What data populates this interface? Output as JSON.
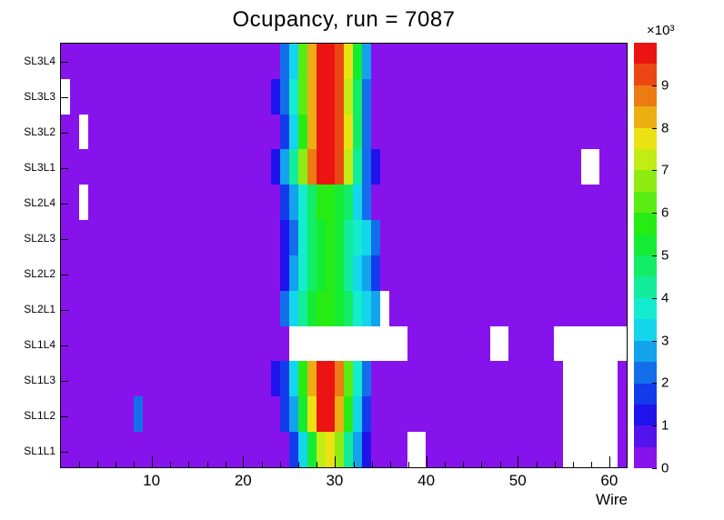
{
  "chart_data": {
    "type": "heatmap",
    "title": "Ocupancy, run = 7087",
    "xlabel": "Wire",
    "x_range": [
      0,
      62
    ],
    "x_major_ticks": [
      10,
      20,
      30,
      40,
      50,
      60
    ],
    "x_minor_tick_step": 2,
    "z_range": [
      0,
      10000
    ],
    "colorbar_ticks": [
      0,
      1,
      2,
      3,
      4,
      5,
      6,
      7,
      8,
      9
    ],
    "z_scale_label": "×10³",
    "empty_bins_color": "#ffffff",
    "palette": {
      "name": "root-rainbow",
      "levels": 20,
      "hue_start": 272,
      "hue_end": 0,
      "saturation": 85,
      "lightness": 50
    },
    "rows_top_to_bottom": [
      {
        "label": "SL3L4",
        "values": [
          400,
          400,
          400,
          400,
          400,
          400,
          400,
          400,
          400,
          400,
          400,
          400,
          400,
          400,
          400,
          400,
          400,
          400,
          400,
          400,
          400,
          400,
          400,
          400,
          2000,
          3400,
          6000,
          8200,
          9600,
          9900,
          9400,
          7800,
          5000,
          2600,
          400,
          400,
          400,
          400,
          400,
          400,
          400,
          400,
          400,
          400,
          400,
          400,
          400,
          400,
          400,
          400,
          400,
          400,
          400,
          400,
          400,
          400,
          400,
          400,
          400,
          400,
          400,
          400
        ]
      },
      {
        "label": "SL3L3",
        "values": [
          null,
          400,
          400,
          400,
          400,
          400,
          400,
          400,
          400,
          400,
          400,
          400,
          400,
          400,
          400,
          400,
          400,
          400,
          400,
          400,
          400,
          400,
          400,
          1400,
          2200,
          3800,
          6400,
          8400,
          9700,
          9900,
          9300,
          7400,
          4600,
          2400,
          400,
          400,
          400,
          400,
          400,
          400,
          400,
          400,
          400,
          400,
          400,
          400,
          400,
          400,
          400,
          400,
          400,
          400,
          400,
          400,
          400,
          400,
          400,
          400,
          400,
          400,
          400,
          400
        ]
      },
      {
        "label": "SL3L2",
        "values": [
          400,
          400,
          null,
          400,
          400,
          400,
          400,
          400,
          400,
          400,
          400,
          400,
          400,
          400,
          400,
          400,
          400,
          400,
          400,
          400,
          400,
          400,
          400,
          400,
          1800,
          3200,
          5800,
          8000,
          9500,
          9800,
          9200,
          7600,
          4800,
          2400,
          400,
          400,
          400,
          400,
          400,
          400,
          400,
          400,
          400,
          400,
          400,
          400,
          400,
          400,
          400,
          400,
          400,
          400,
          400,
          400,
          400,
          400,
          400,
          400,
          400,
          400,
          400,
          400
        ]
      },
      {
        "label": "SL3L1",
        "values": [
          400,
          400,
          400,
          400,
          400,
          400,
          400,
          400,
          400,
          400,
          400,
          400,
          400,
          400,
          400,
          400,
          400,
          400,
          400,
          400,
          400,
          400,
          400,
          1400,
          2600,
          4200,
          6800,
          8600,
          9800,
          9900,
          9000,
          7000,
          4400,
          2200,
          1200,
          400,
          400,
          400,
          400,
          400,
          400,
          400,
          400,
          400,
          400,
          400,
          400,
          400,
          400,
          400,
          400,
          400,
          400,
          400,
          400,
          400,
          400,
          null,
          null,
          400,
          400,
          400
        ]
      },
      {
        "label": "SL2L4",
        "values": [
          400,
          400,
          null,
          400,
          400,
          400,
          400,
          400,
          400,
          400,
          400,
          400,
          400,
          400,
          400,
          400,
          400,
          400,
          400,
          400,
          400,
          400,
          400,
          400,
          1600,
          2600,
          3800,
          4800,
          5600,
          5800,
          5400,
          4600,
          3400,
          2200,
          400,
          400,
          400,
          400,
          400,
          400,
          400,
          400,
          400,
          400,
          400,
          400,
          400,
          400,
          400,
          400,
          400,
          400,
          400,
          400,
          400,
          400,
          400,
          400,
          400,
          400,
          400,
          400
        ]
      },
      {
        "label": "SL2L3",
        "values": [
          400,
          400,
          400,
          400,
          400,
          400,
          400,
          400,
          400,
          400,
          400,
          400,
          400,
          400,
          400,
          400,
          400,
          400,
          400,
          400,
          400,
          400,
          400,
          400,
          1400,
          2400,
          3600,
          4600,
          5200,
          5600,
          5200,
          4400,
          3600,
          3000,
          2000,
          400,
          400,
          400,
          400,
          400,
          400,
          400,
          400,
          400,
          400,
          400,
          400,
          400,
          400,
          400,
          400,
          400,
          400,
          400,
          400,
          400,
          400,
          400,
          400,
          400,
          400,
          400
        ]
      },
      {
        "label": "SL2L2",
        "values": [
          400,
          400,
          400,
          400,
          400,
          400,
          400,
          400,
          400,
          400,
          400,
          400,
          400,
          400,
          400,
          400,
          400,
          400,
          400,
          400,
          400,
          400,
          400,
          400,
          1400,
          2600,
          3800,
          4800,
          5400,
          5600,
          5000,
          4200,
          3400,
          2800,
          1800,
          400,
          400,
          400,
          400,
          400,
          400,
          400,
          400,
          400,
          400,
          400,
          400,
          400,
          400,
          400,
          400,
          400,
          400,
          400,
          400,
          400,
          400,
          400,
          400,
          400,
          400,
          400
        ]
      },
      {
        "label": "SL2L1",
        "values": [
          400,
          400,
          400,
          400,
          400,
          400,
          400,
          400,
          400,
          400,
          400,
          400,
          400,
          400,
          400,
          400,
          400,
          400,
          400,
          400,
          400,
          400,
          400,
          400,
          2000,
          3000,
          4000,
          5000,
          5600,
          5800,
          5400,
          4600,
          3800,
          3200,
          2600,
          null,
          400,
          400,
          400,
          400,
          400,
          400,
          400,
          400,
          400,
          400,
          400,
          400,
          400,
          400,
          400,
          400,
          400,
          400,
          400,
          400,
          400,
          400,
          400,
          400,
          400,
          400
        ]
      },
      {
        "label": "SL1L4",
        "values": [
          400,
          400,
          400,
          400,
          400,
          400,
          400,
          400,
          400,
          400,
          400,
          400,
          400,
          400,
          400,
          400,
          400,
          400,
          400,
          400,
          400,
          400,
          400,
          400,
          400,
          null,
          null,
          null,
          null,
          null,
          null,
          null,
          null,
          null,
          null,
          null,
          null,
          null,
          400,
          400,
          400,
          400,
          400,
          400,
          400,
          400,
          400,
          null,
          null,
          400,
          400,
          400,
          400,
          400,
          null,
          null,
          null,
          null,
          null,
          null,
          null,
          null
        ]
      },
      {
        "label": "SL1L3",
        "values": [
          400,
          400,
          400,
          400,
          400,
          400,
          400,
          400,
          400,
          400,
          400,
          400,
          400,
          400,
          400,
          400,
          400,
          400,
          400,
          400,
          400,
          400,
          400,
          1200,
          1800,
          3000,
          5600,
          8000,
          9600,
          9800,
          8800,
          6400,
          3800,
          2000,
          400,
          400,
          400,
          400,
          400,
          400,
          400,
          400,
          400,
          400,
          400,
          400,
          400,
          400,
          400,
          400,
          400,
          400,
          400,
          400,
          400,
          null,
          null,
          null,
          null,
          null,
          null,
          400
        ]
      },
      {
        "label": "SL1L2",
        "values": [
          400,
          400,
          400,
          400,
          400,
          400,
          400,
          400,
          2200,
          400,
          400,
          400,
          400,
          400,
          400,
          400,
          400,
          400,
          400,
          400,
          400,
          400,
          400,
          400,
          1600,
          2800,
          5200,
          7800,
          9700,
          9900,
          8400,
          5600,
          3200,
          1800,
          400,
          400,
          400,
          400,
          400,
          400,
          400,
          400,
          400,
          400,
          400,
          400,
          400,
          400,
          400,
          400,
          400,
          400,
          400,
          400,
          400,
          null,
          null,
          null,
          null,
          null,
          null,
          400
        ]
      },
      {
        "label": "SL1L1",
        "values": [
          400,
          400,
          400,
          400,
          400,
          400,
          400,
          400,
          400,
          400,
          400,
          400,
          400,
          400,
          400,
          400,
          400,
          400,
          400,
          400,
          400,
          400,
          400,
          400,
          400,
          1800,
          3000,
          5000,
          7000,
          7600,
          6600,
          4400,
          2600,
          1400,
          400,
          400,
          400,
          400,
          null,
          null,
          400,
          400,
          400,
          400,
          400,
          400,
          400,
          400,
          400,
          400,
          400,
          400,
          400,
          400,
          400,
          null,
          null,
          null,
          null,
          null,
          null,
          400
        ]
      }
    ]
  }
}
